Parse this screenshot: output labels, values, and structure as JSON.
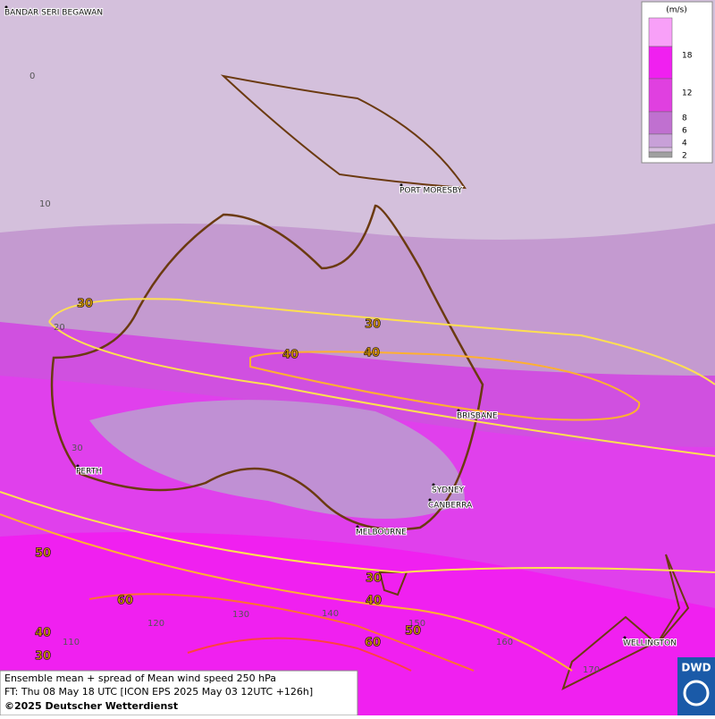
{
  "legend": {
    "unit": "(m/s)",
    "labels": [
      18,
      12,
      8,
      6,
      4,
      2
    ]
  },
  "cities": [
    "BANDAR SERI BEGAWAN",
    "PORT MORESBY",
    "BRISBANE",
    "PERTH",
    "SYDNEY",
    "CANBERRA",
    "MELBOURNE",
    "WELLINGTON"
  ],
  "grid_labels": {
    "lat": [
      0,
      10,
      20,
      30
    ],
    "lon": [
      110,
      120,
      130,
      140,
      150,
      160,
      170
    ]
  },
  "contour_labels": [
    30,
    30,
    40,
    40,
    50,
    30,
    40,
    60,
    60,
    50,
    40,
    30
  ],
  "footer": {
    "line1": "Ensemble mean + spread of Mean wind speed 250 hPa",
    "line2": "FT: Thu 08 May 18 UTC [ICON EPS 2025 May 03 12UTC +126h]",
    "line3": "©2025 Deutscher Wetterdienst"
  },
  "logo": "DWD"
}
